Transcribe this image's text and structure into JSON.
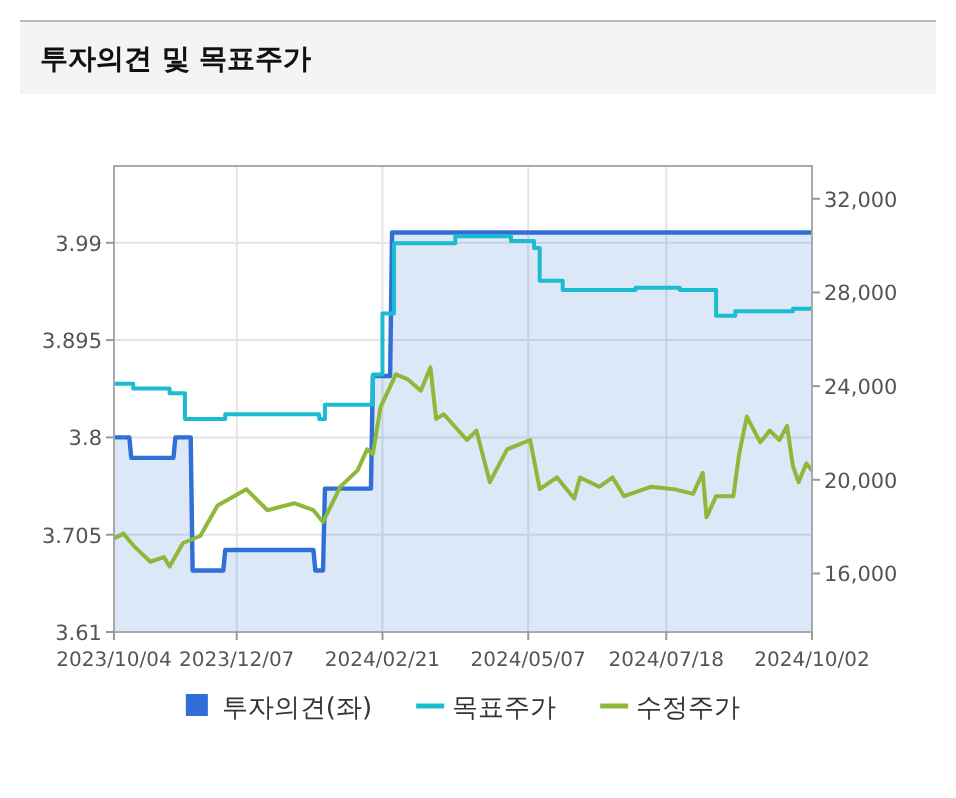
{
  "chart_data": {
    "type": "line",
    "title": "투자의견 및 목표주가",
    "xlim": [
      "2023-10-04",
      "2024-10-02"
    ],
    "xticks": [
      {
        "value": "2023-10-04",
        "label": "2023/10/04"
      },
      {
        "value": "2023-12-07",
        "label": "2023/12/07"
      },
      {
        "value": "2024-02-21",
        "label": "2024/02/21"
      },
      {
        "value": "2024-05-07",
        "label": "2024/05/07"
      },
      {
        "value": "2024-07-18",
        "label": "2024/07/18"
      },
      {
        "value": "2024-10-02",
        "label": "2024/10/02"
      }
    ],
    "ylim": [
      3.61,
      4.065
    ],
    "yticks": [
      3.61,
      3.705,
      3.8,
      3.895,
      3.99
    ],
    "y2lim": [
      13500,
      33400
    ],
    "y2ticks": [
      {
        "value": 16000,
        "label": "16,000"
      },
      {
        "value": 20000,
        "label": "20,000"
      },
      {
        "value": 24000,
        "label": "24,000"
      },
      {
        "value": 28000,
        "label": "28,000"
      },
      {
        "value": 32000,
        "label": "32,000"
      }
    ],
    "grid": true,
    "legend": "bottom",
    "series": [
      {
        "name": "투자의견(좌)",
        "type": "area",
        "color": "#2f6fd6",
        "x": [
          "2023-10-04",
          "2023-10-12",
          "2023-10-13",
          "2023-11-04",
          "2023-11-05",
          "2023-11-13",
          "2023-11-14",
          "2023-11-30",
          "2023-12-01",
          "2024-01-16",
          "2024-01-17",
          "2024-01-21",
          "2024-01-22",
          "2024-02-15",
          "2024-02-16",
          "2024-02-25",
          "2024-02-26",
          "2024-10-02"
        ],
        "values": [
          3.8,
          3.8,
          3.78,
          3.78,
          3.8,
          3.8,
          3.67,
          3.67,
          3.69,
          3.69,
          3.67,
          3.67,
          3.75,
          3.75,
          3.86,
          3.86,
          4.0,
          4.0
        ]
      },
      {
        "name": "목표주가",
        "type": "step",
        "axis": "y2",
        "color": "#1bbcd0",
        "x": [
          "2023-10-04",
          "2023-10-14",
          "2023-11-02",
          "2023-11-10",
          "2023-12-01",
          "2024-01-19",
          "2024-01-22",
          "2024-02-16",
          "2024-02-21",
          "2024-02-27",
          "2024-03-30",
          "2024-04-28",
          "2024-05-10",
          "2024-05-13",
          "2024-05-25",
          "2024-07-02",
          "2024-07-25",
          "2024-08-13",
          "2024-08-23",
          "2024-09-22",
          "2024-10-02"
        ],
        "values": [
          24100,
          23900,
          23700,
          22600,
          22800,
          22600,
          23200,
          24500,
          27100,
          30100,
          30400,
          30200,
          29900,
          28500,
          28100,
          28200,
          28100,
          27000,
          27200,
          27300,
          27300
        ]
      },
      {
        "name": "수정주가",
        "axis": "y2",
        "color": "#8db83a",
        "x": [
          "2023-10-04",
          "2023-10-09",
          "2023-10-14",
          "2023-10-23",
          "2023-10-30",
          "2023-11-02",
          "2023-11-09",
          "2023-11-18",
          "2023-11-27",
          "2023-12-12",
          "2023-12-23",
          "2024-01-06",
          "2024-01-16",
          "2024-01-21",
          "2024-01-30",
          "2024-02-08",
          "2024-02-13",
          "2024-02-16",
          "2024-02-20",
          "2024-02-28",
          "2024-03-05",
          "2024-03-12",
          "2024-03-17",
          "2024-03-20",
          "2024-03-24",
          "2024-04-05",
          "2024-04-10",
          "2024-04-17",
          "2024-04-26",
          "2024-05-08",
          "2024-05-13",
          "2024-05-22",
          "2024-05-31",
          "2024-06-03",
          "2024-06-13",
          "2024-06-20",
          "2024-06-26",
          "2024-07-10",
          "2024-07-22",
          "2024-08-01",
          "2024-08-06",
          "2024-08-08",
          "2024-08-13",
          "2024-08-22",
          "2024-08-25",
          "2024-08-29",
          "2024-09-05",
          "2024-09-10",
          "2024-09-15",
          "2024-09-19",
          "2024-09-22",
          "2024-09-25",
          "2024-09-29",
          "2024-10-02"
        ],
        "values": [
          17500,
          17700,
          17200,
          16500,
          16700,
          16300,
          17300,
          17600,
          18900,
          19600,
          18700,
          19000,
          18700,
          18200,
          19700,
          20400,
          21300,
          21100,
          23100,
          24500,
          24300,
          23800,
          24800,
          22600,
          22800,
          21700,
          22100,
          19900,
          21300,
          21700,
          19600,
          20100,
          19200,
          20100,
          19700,
          20100,
          19300,
          19700,
          19600,
          19400,
          20300,
          18400,
          19300,
          19300,
          21100,
          22700,
          21600,
          22100,
          21700,
          22300,
          20600,
          19900,
          20700,
          20400
        ]
      }
    ]
  }
}
